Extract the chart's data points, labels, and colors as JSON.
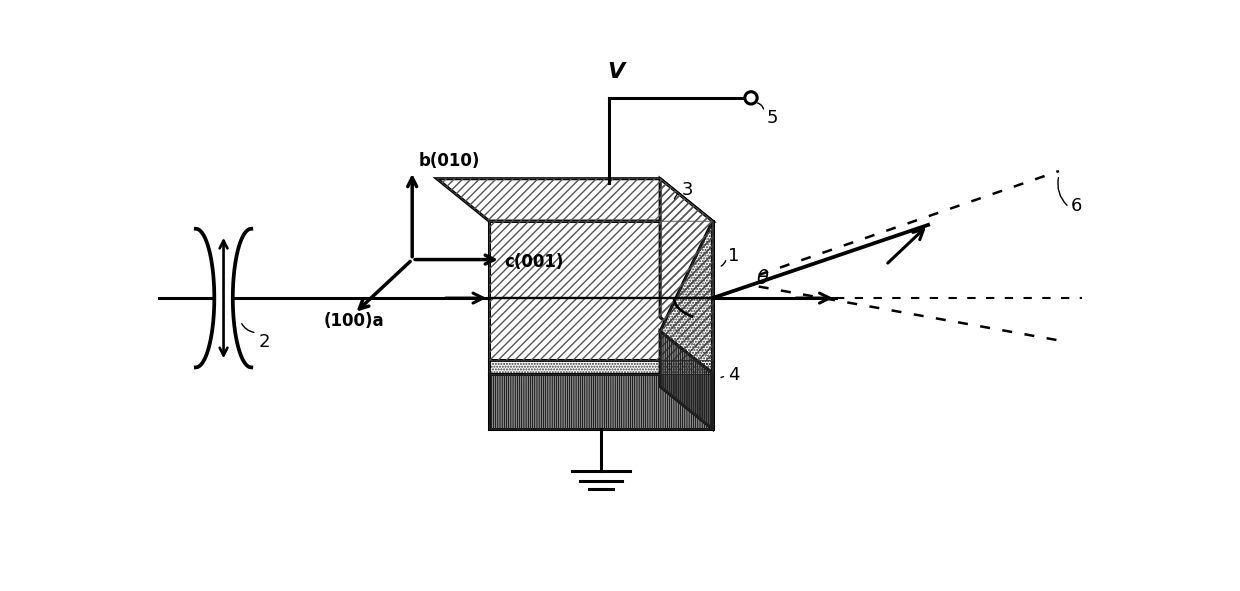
{
  "bg_color": "#ffffff",
  "line_color": "#000000",
  "axis_b_label": "b(010)",
  "axis_c_label": "c(001)",
  "axis_a_label": "(100)a",
  "voltage_label": "V",
  "label_5": "5",
  "label_2": "2",
  "label_1": "1",
  "label_3": "3",
  "label_4": "4",
  "label_6": "6",
  "theta_label": "θ",
  "figw": 12.4,
  "figh": 5.91,
  "dpi": 100
}
